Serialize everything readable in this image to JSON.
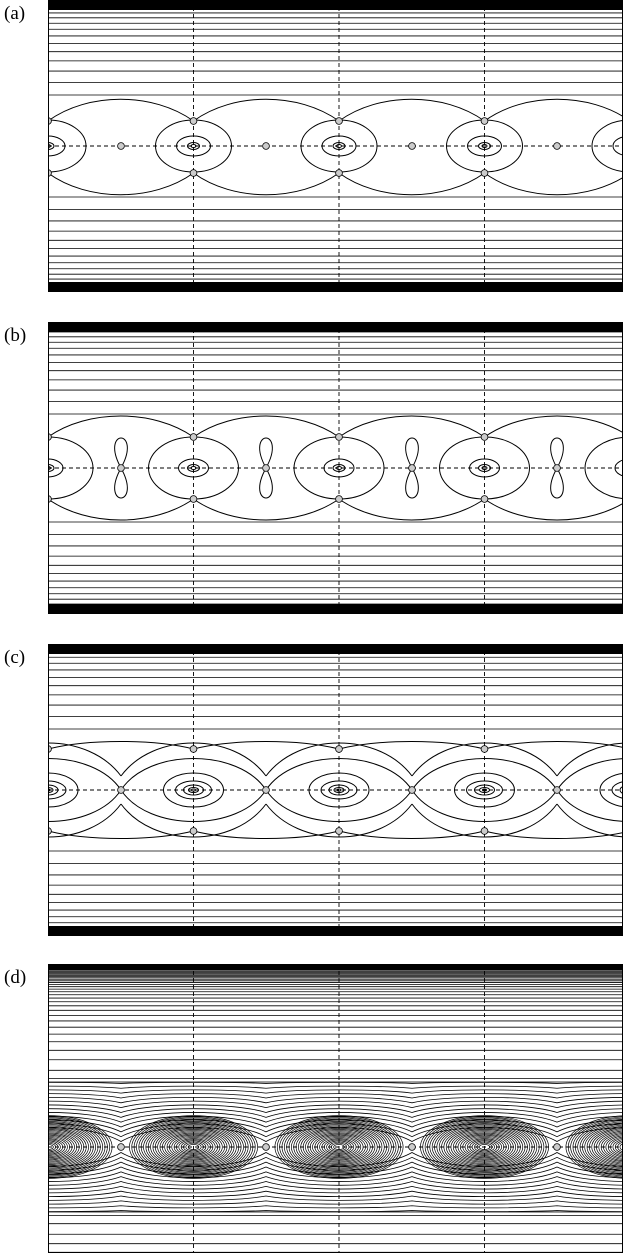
{
  "figure": {
    "panels": [
      {
        "label": "(a)",
        "type": "point"
      },
      {
        "label": "(b)",
        "type": "bowtie"
      },
      {
        "label": "(c)",
        "type": "cat"
      },
      {
        "label": "(d)",
        "type": "dense"
      }
    ],
    "line_color": "#000000",
    "marker_fill": "#cccccc"
  }
}
